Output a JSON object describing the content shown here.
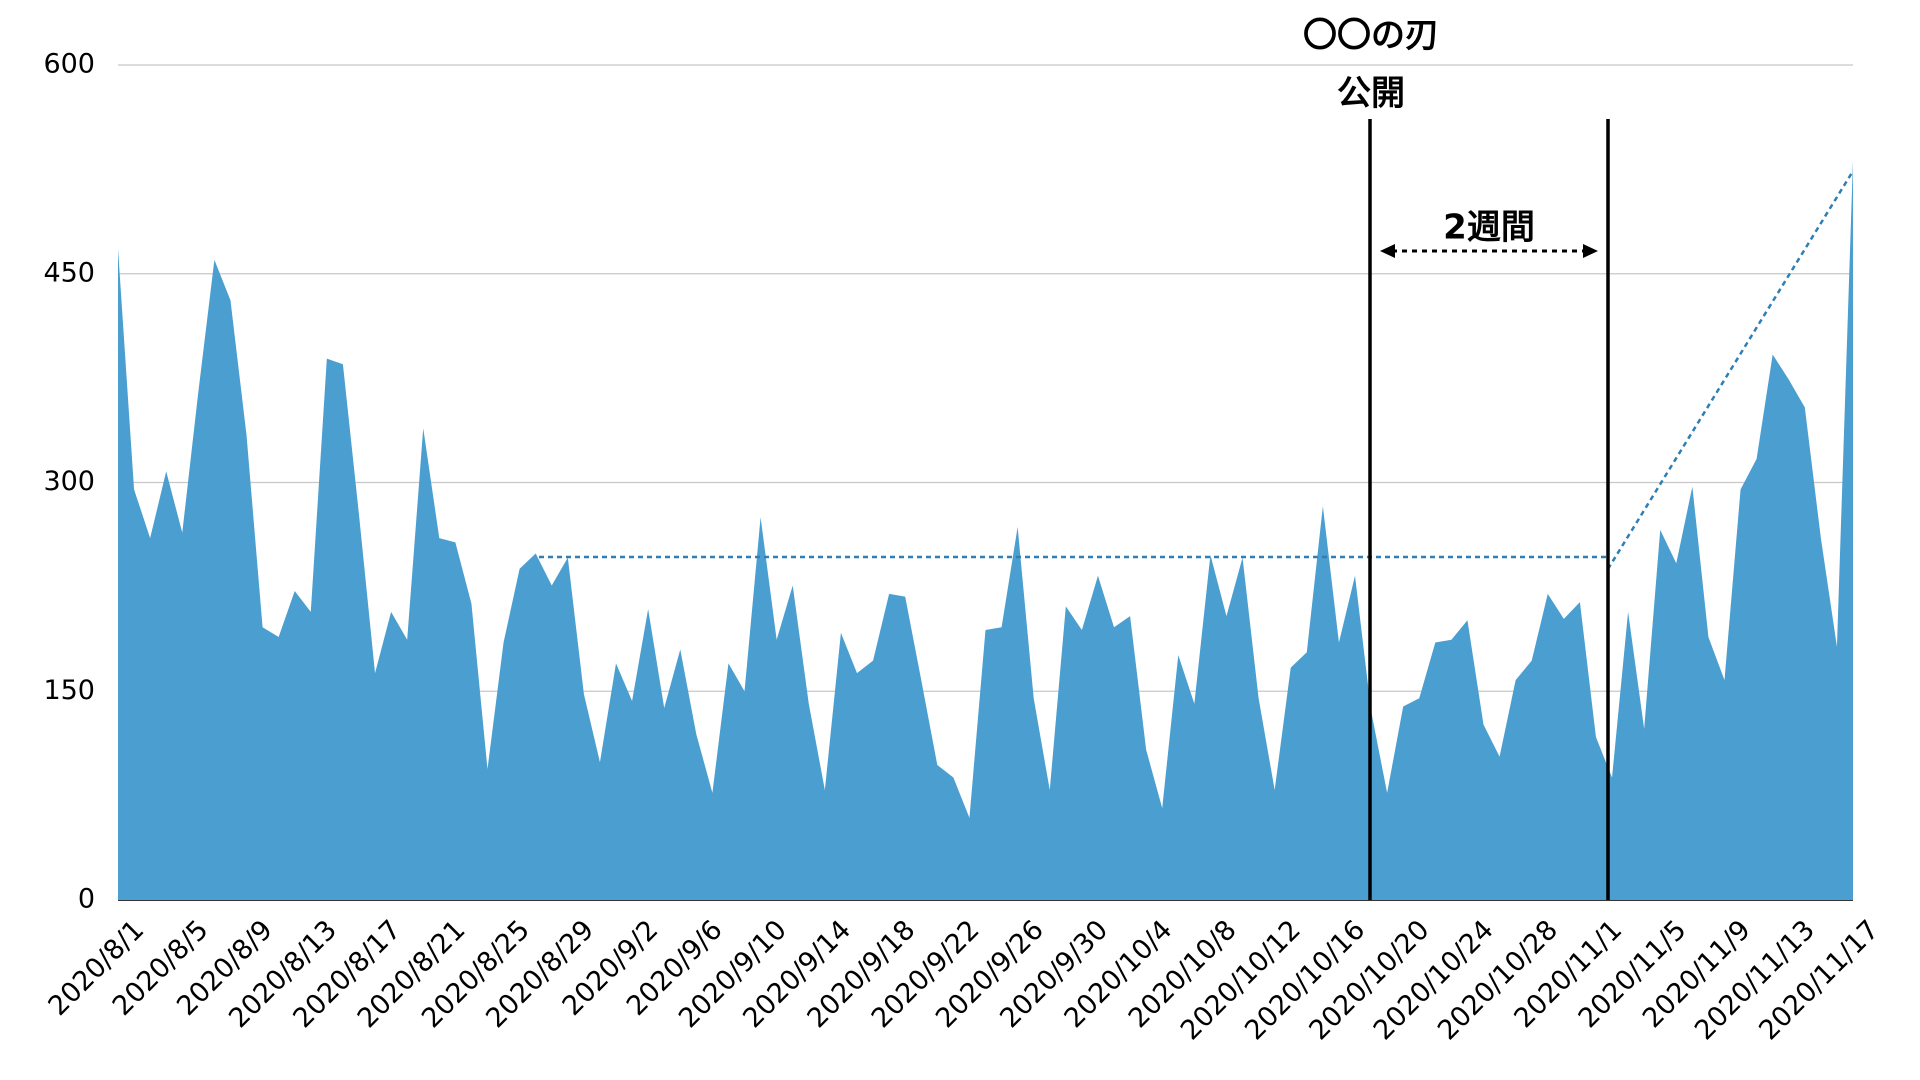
{
  "chart_data": {
    "type": "area",
    "categories": [
      "2020/8/1",
      null,
      null,
      null,
      "2020/8/5",
      null,
      null,
      null,
      "2020/8/9",
      null,
      null,
      null,
      "2020/8/13",
      null,
      null,
      null,
      "2020/8/17",
      null,
      null,
      null,
      "2020/8/21",
      null,
      null,
      null,
      "2020/8/25",
      null,
      null,
      null,
      "2020/8/29",
      null,
      null,
      null,
      "2020/9/2",
      null,
      null,
      null,
      "2020/9/6",
      null,
      null,
      null,
      "2020/9/10",
      null,
      null,
      null,
      "2020/9/14",
      null,
      null,
      null,
      "2020/9/18",
      null,
      null,
      null,
      "2020/9/22",
      null,
      null,
      null,
      "2020/9/26",
      null,
      null,
      null,
      "2020/9/30",
      null,
      null,
      null,
      "2020/10/4",
      null,
      null,
      null,
      "2020/10/8",
      null,
      null,
      null,
      "2020/10/12",
      null,
      null,
      null,
      "2020/10/16",
      null,
      null,
      null,
      "2020/10/20",
      null,
      null,
      null,
      "2020/10/24",
      null,
      null,
      null,
      "2020/10/28",
      null,
      null,
      null,
      "2020/11/1",
      null,
      null,
      null,
      "2020/11/5",
      null,
      null,
      null,
      "2020/11/9",
      null,
      null,
      null,
      "2020/11/13",
      null,
      null,
      null,
      "2020/11/17"
    ],
    "values": [
      468,
      295,
      260,
      308,
      264,
      365,
      460,
      431,
      334,
      196,
      189,
      222,
      207,
      389,
      385,
      277,
      163,
      207,
      187,
      339,
      260,
      257,
      213,
      94,
      185,
      238,
      249,
      226,
      246,
      148,
      99,
      170,
      143,
      209,
      138,
      180,
      119,
      77,
      170,
      150,
      275,
      187,
      226,
      141,
      79,
      192,
      163,
      172,
      220,
      218,
      158,
      97,
      88,
      59,
      194,
      196,
      268,
      145,
      79,
      211,
      194,
      233,
      196,
      204,
      108,
      66,
      176,
      141,
      248,
      204,
      246,
      145,
      79,
      167,
      178,
      283,
      185,
      233,
      136,
      77,
      139,
      145,
      185,
      187,
      201,
      126,
      103,
      158,
      172,
      220,
      202,
      214,
      117,
      88,
      207,
      123,
      266,
      242,
      297,
      189,
      158,
      295,
      317,
      392,
      374,
      354,
      260,
      182,
      532
    ],
    "color": "#4a9fd0",
    "ylim": [
      0,
      600
    ],
    "yticks": [
      0,
      150,
      300,
      450,
      600
    ],
    "grid": true,
    "annotations": {
      "release_title": "〇〇の刃",
      "release_label": "公開",
      "period_label": "2週間"
    }
  }
}
